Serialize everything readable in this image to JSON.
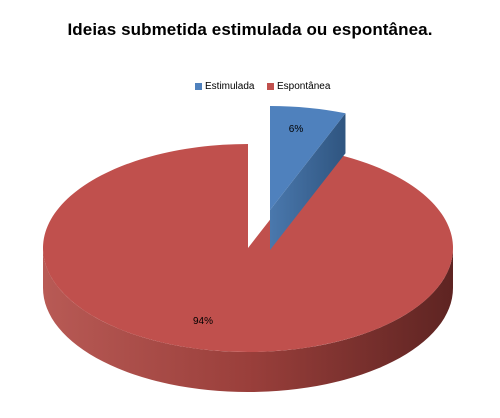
{
  "chart_data": {
    "type": "pie",
    "title": "Ideias submetida estimulada ou espontânea.",
    "categories": [
      "Estimulada",
      "Espontânea"
    ],
    "values": [
      6,
      94
    ],
    "data_labels": [
      "6%",
      "94%"
    ],
    "exploded": "Estimulada",
    "style": "3d",
    "legend_position": "top",
    "colors": [
      "#4F81BD",
      "#C0504D"
    ],
    "side_colors": [
      "#3C6596",
      "#7E2F2C"
    ]
  }
}
